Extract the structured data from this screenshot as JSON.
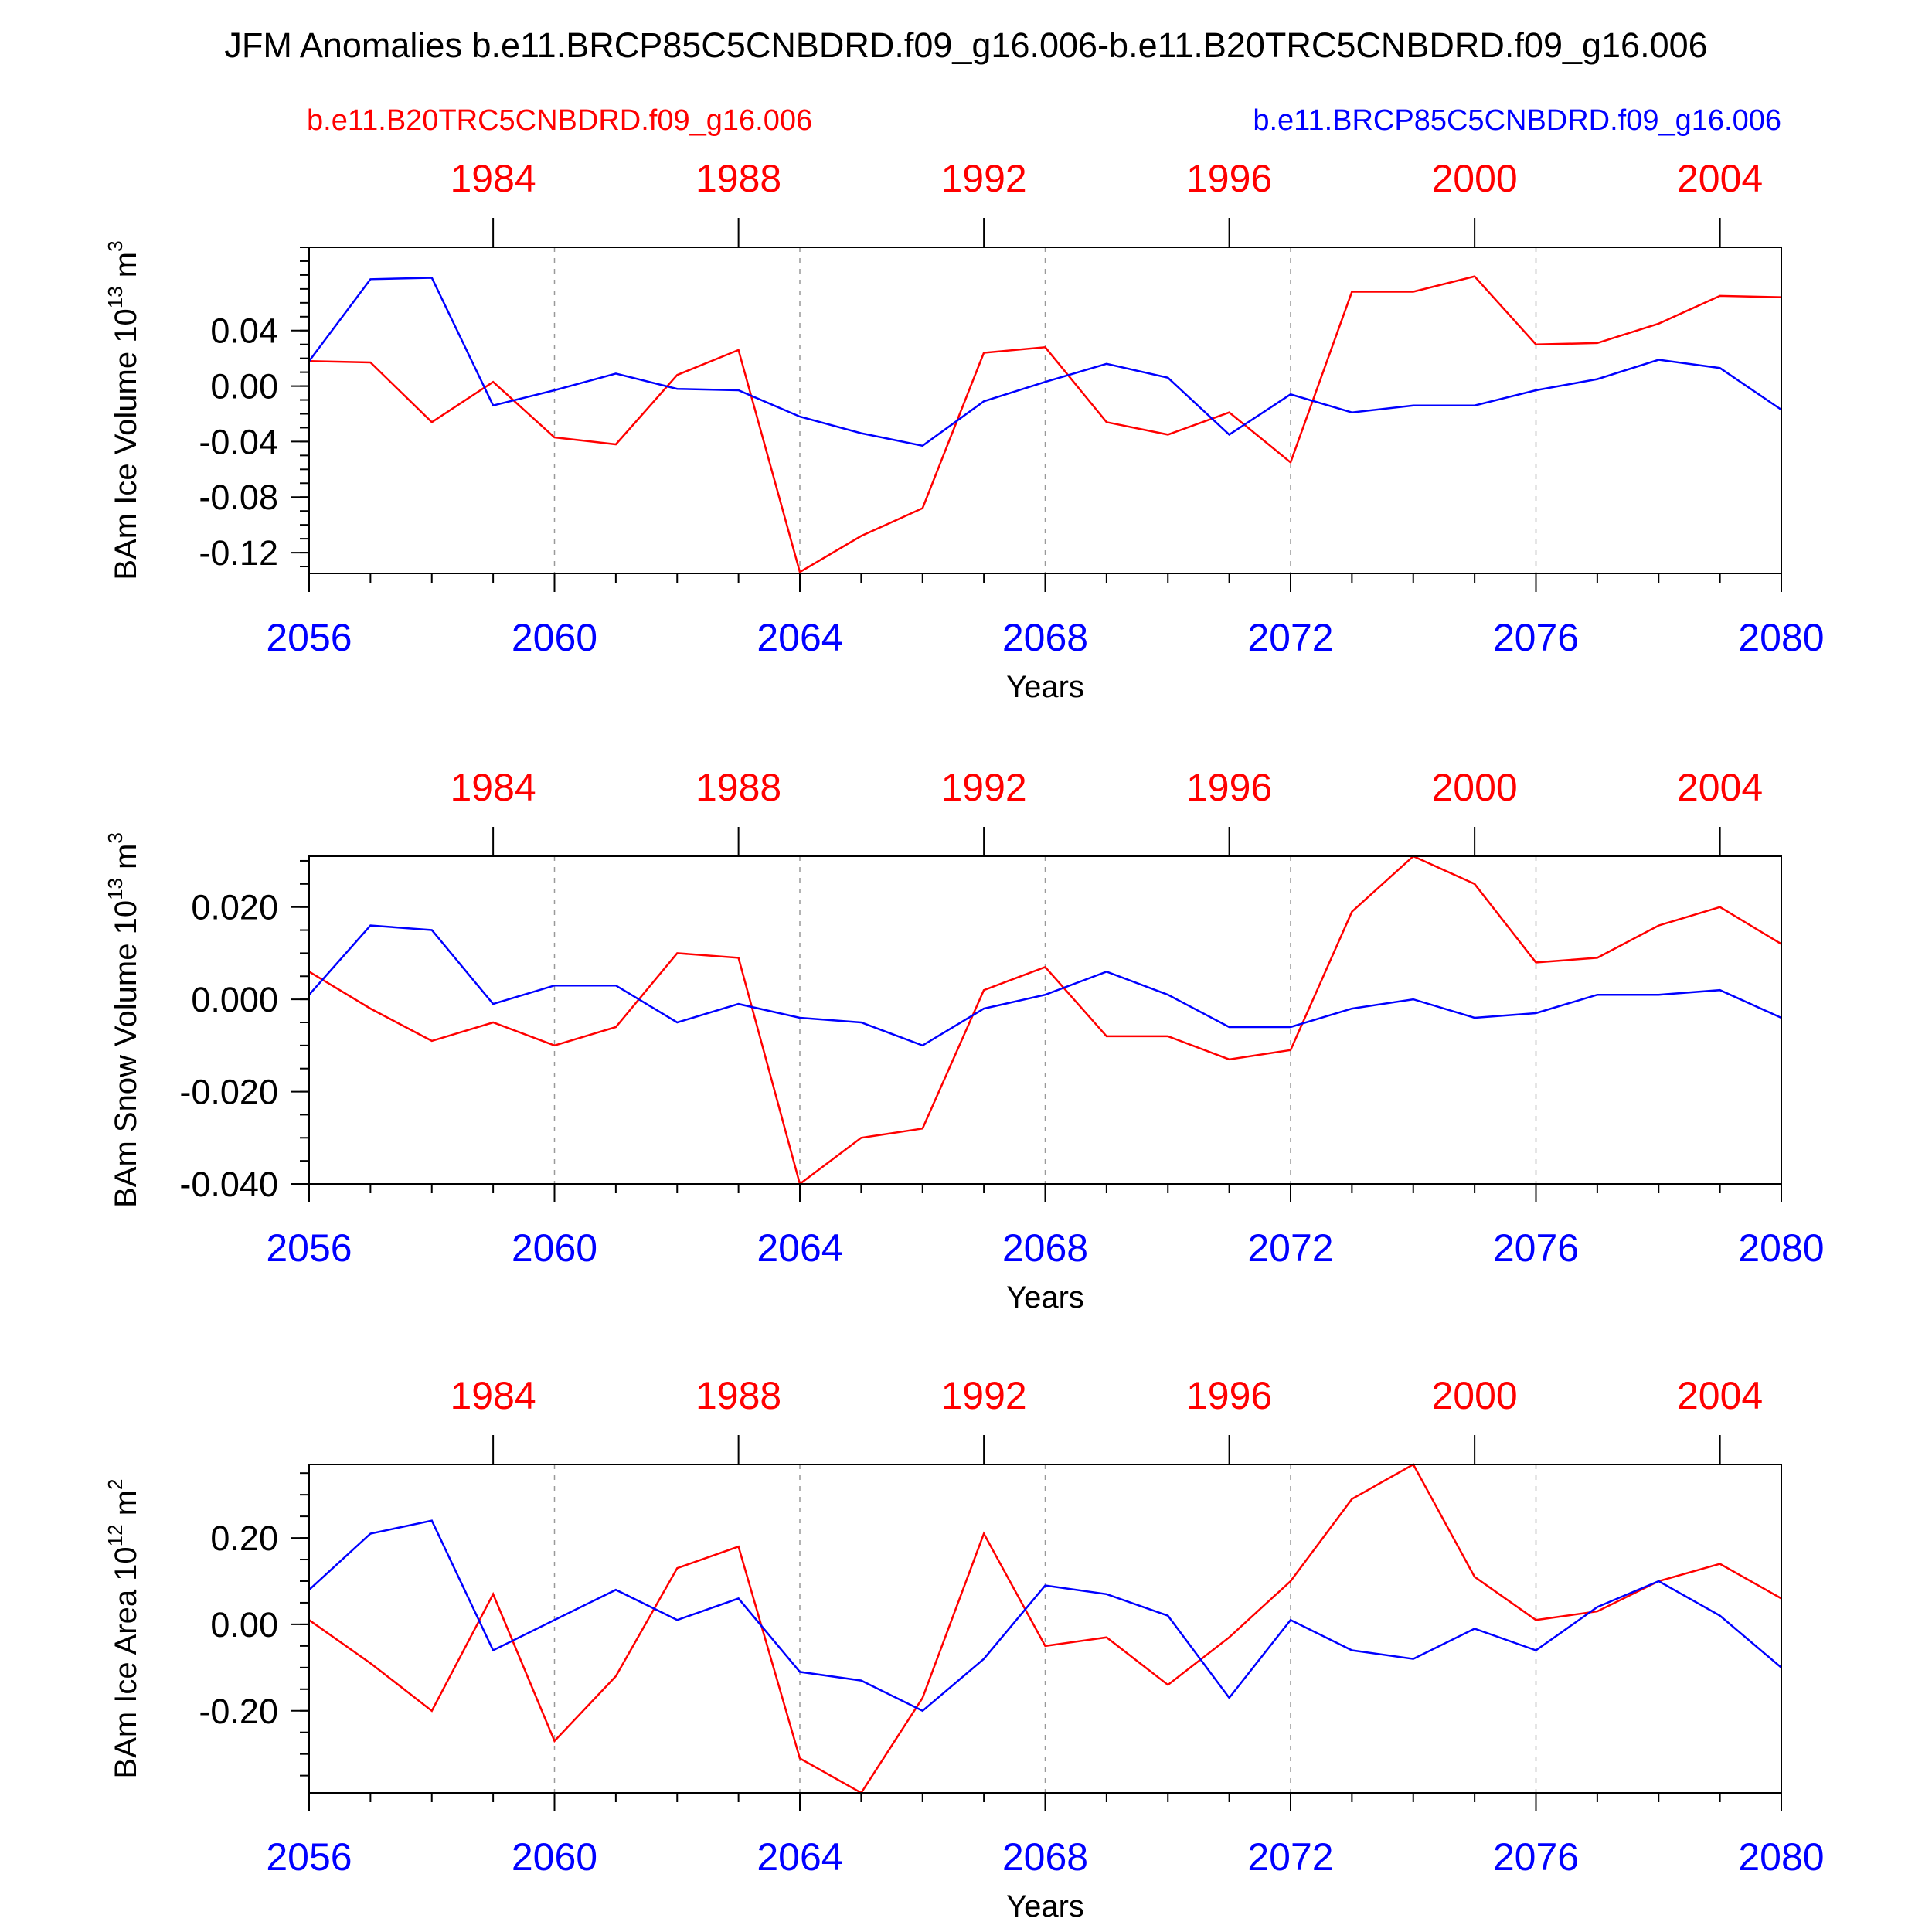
{
  "title": "JFM Anomalies b.e11.BRCP85C5CNBDRD.f09_g16.006-b.e11.B20TRC5CNBDRD.f09_g16.006",
  "legend": {
    "red": "b.e11.B20TRC5CNBDRD.f09_g16.006",
    "blue": "b.e11.BRCP85C5CNBDRD.f09_g16.006"
  },
  "colors": {
    "red": "#ff0000",
    "blue": "#0000ff",
    "grid": "#999999"
  },
  "chart_data": [
    {
      "type": "line",
      "ylabel": "BAm Ice Volume 10",
      "ylabel_exp": "13",
      "ylabel_unit": " m",
      "ylabel_unit_exp": "3",
      "xlabel": "Years",
      "ylim": [
        -0.135,
        0.1
      ],
      "yticks": [
        0.04,
        0.0,
        -0.04,
        -0.08,
        -0.12
      ],
      "yticklabels": [
        "0.04",
        "0.00",
        "-0.04",
        "-0.08",
        "-0.12"
      ],
      "yminor_step": 0.01,
      "x": [
        2056,
        2057,
        2058,
        2059,
        2060,
        2061,
        2062,
        2063,
        2064,
        2065,
        2066,
        2067,
        2068,
        2069,
        2070,
        2071,
        2072,
        2073,
        2074,
        2075,
        2076,
        2077,
        2078,
        2079,
        2080
      ],
      "series": [
        {
          "color": "red",
          "values": [
            0.018,
            0.017,
            -0.026,
            0.003,
            -0.037,
            -0.042,
            0.008,
            0.026,
            -0.134,
            -0.108,
            -0.088,
            0.024,
            0.028,
            -0.026,
            -0.035,
            -0.019,
            -0.055,
            0.068,
            0.068,
            0.079,
            0.03,
            0.031,
            0.045,
            0.065,
            0.064
          ]
        },
        {
          "color": "blue",
          "values": [
            0.018,
            0.077,
            0.078,
            -0.014,
            -0.003,
            0.009,
            -0.002,
            -0.003,
            -0.022,
            -0.034,
            -0.043,
            -0.011,
            0.003,
            0.016,
            0.006,
            -0.035,
            -0.006,
            -0.019,
            -0.014,
            -0.014,
            -0.003,
            0.005,
            0.019,
            0.013,
            -0.017
          ]
        }
      ]
    },
    {
      "type": "line",
      "ylabel": "BAm Snow Volume 10",
      "ylabel_exp": "13",
      "ylabel_unit": " m",
      "ylabel_unit_exp": "3",
      "xlabel": "Years",
      "ylim": [
        -0.04,
        0.031
      ],
      "yticks": [
        0.02,
        0.0,
        -0.02,
        -0.04
      ],
      "yticklabels": [
        "0.020",
        "0.000",
        "-0.020",
        "-0.040"
      ],
      "yminor_step": 0.005,
      "x": [
        2056,
        2057,
        2058,
        2059,
        2060,
        2061,
        2062,
        2063,
        2064,
        2065,
        2066,
        2067,
        2068,
        2069,
        2070,
        2071,
        2072,
        2073,
        2074,
        2075,
        2076,
        2077,
        2078,
        2079,
        2080
      ],
      "series": [
        {
          "color": "red",
          "values": [
            0.006,
            -0.002,
            -0.009,
            -0.005,
            -0.01,
            -0.006,
            0.01,
            0.009,
            -0.04,
            -0.03,
            -0.028,
            0.002,
            0.007,
            -0.008,
            -0.008,
            -0.013,
            -0.011,
            0.019,
            0.031,
            0.025,
            0.008,
            0.009,
            0.016,
            0.02,
            0.012
          ]
        },
        {
          "color": "blue",
          "values": [
            0.001,
            0.016,
            0.015,
            -0.001,
            0.003,
            0.003,
            -0.005,
            -0.001,
            -0.004,
            -0.005,
            -0.01,
            -0.002,
            0.001,
            0.006,
            0.001,
            -0.006,
            -0.006,
            -0.002,
            0.0,
            -0.004,
            -0.003,
            0.001,
            0.001,
            0.002,
            -0.004
          ]
        }
      ]
    },
    {
      "type": "line",
      "ylabel": "BAm Ice Area 10",
      "ylabel_exp": "12",
      "ylabel_unit": " m",
      "ylabel_unit_exp": "2",
      "xlabel": "Years",
      "ylim": [
        -0.39,
        0.37
      ],
      "yticks": [
        0.2,
        0.0,
        -0.2
      ],
      "yticklabels": [
        "0.20",
        "0.00",
        "-0.20"
      ],
      "yminor_step": 0.05,
      "x": [
        2056,
        2057,
        2058,
        2059,
        2060,
        2061,
        2062,
        2063,
        2064,
        2065,
        2066,
        2067,
        2068,
        2069,
        2070,
        2071,
        2072,
        2073,
        2074,
        2075,
        2076,
        2077,
        2078,
        2079,
        2080
      ],
      "series": [
        {
          "color": "red",
          "values": [
            0.01,
            -0.09,
            -0.2,
            0.07,
            -0.27,
            -0.12,
            0.13,
            0.18,
            -0.31,
            -0.39,
            -0.17,
            0.21,
            -0.05,
            -0.03,
            -0.14,
            -0.03,
            0.1,
            0.29,
            0.37,
            0.11,
            0.01,
            0.03,
            0.1,
            0.14,
            0.06
          ]
        },
        {
          "color": "blue",
          "values": [
            0.08,
            0.21,
            0.24,
            -0.06,
            0.01,
            0.08,
            0.01,
            0.06,
            -0.11,
            -0.13,
            -0.2,
            -0.08,
            0.09,
            0.07,
            0.02,
            -0.17,
            0.01,
            -0.06,
            -0.08,
            -0.01,
            -0.06,
            0.04,
            0.1,
            0.02,
            -0.1
          ]
        }
      ]
    }
  ],
  "bottom_axis": {
    "ticks": [
      2056,
      2060,
      2064,
      2068,
      2072,
      2076,
      2080
    ],
    "labels": [
      "2056",
      "2060",
      "2064",
      "2068",
      "2072",
      "2076",
      "2080"
    ]
  },
  "top_axis": {
    "ticks": [
      2059,
      2063,
      2067,
      2071,
      2075,
      2079
    ],
    "labels": [
      "1984",
      "1988",
      "1992",
      "1996",
      "2000",
      "2004"
    ]
  }
}
